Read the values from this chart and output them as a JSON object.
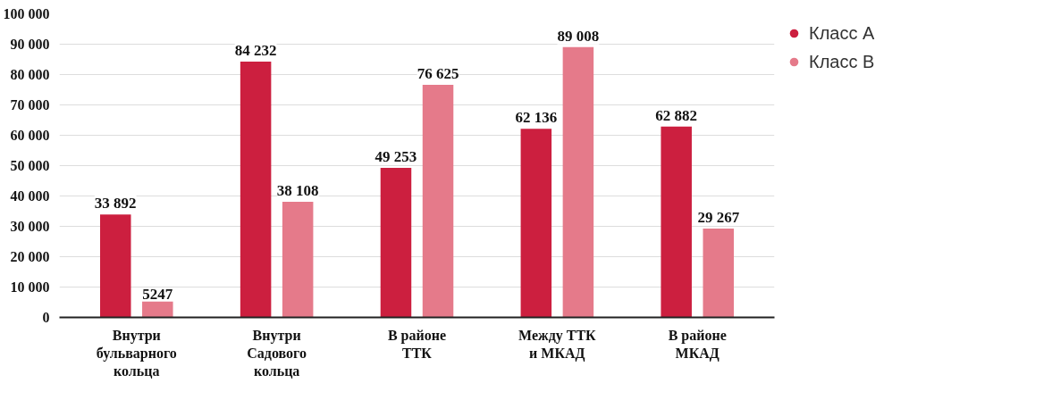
{
  "chart_data": {
    "type": "bar",
    "categories": [
      "Внутри\nбульварного\nкольца",
      "Внутри\nСадового\nкольца",
      "В районе\nТТК",
      "Между ТТК\nи МКАД",
      "В районе\nМКАД"
    ],
    "series": [
      {
        "name": "Класс А",
        "color": "#cc1f3f",
        "values": [
          33892,
          84232,
          49253,
          62136,
          62882
        ],
        "value_labels": [
          "33 892",
          "84 232",
          "49 253",
          "62 136",
          "62 882"
        ]
      },
      {
        "name": "Класс В",
        "color": "#e57a8a",
        "values": [
          5247,
          38108,
          76625,
          89008,
          29267
        ],
        "value_labels": [
          "5247",
          "38 108",
          "76 625",
          "89 008",
          "29 267"
        ]
      }
    ],
    "ylim": [
      0,
      100000
    ],
    "yticks": [
      {
        "value": 0,
        "label": "0"
      },
      {
        "value": 10000,
        "label": "10 000"
      },
      {
        "value": 20000,
        "label": "20 000"
      },
      {
        "value": 30000,
        "label": "30 000"
      },
      {
        "value": 40000,
        "label": "40 000"
      },
      {
        "value": 50000,
        "label": "50 000"
      },
      {
        "value": 60000,
        "label": "60 000"
      },
      {
        "value": 70000,
        "label": "70 000"
      },
      {
        "value": 80000,
        "label": "80 000"
      },
      {
        "value": 90000,
        "label": "90 000"
      },
      {
        "value": 100000,
        "label": "100 000"
      }
    ],
    "grid": "y",
    "legend": "right"
  }
}
